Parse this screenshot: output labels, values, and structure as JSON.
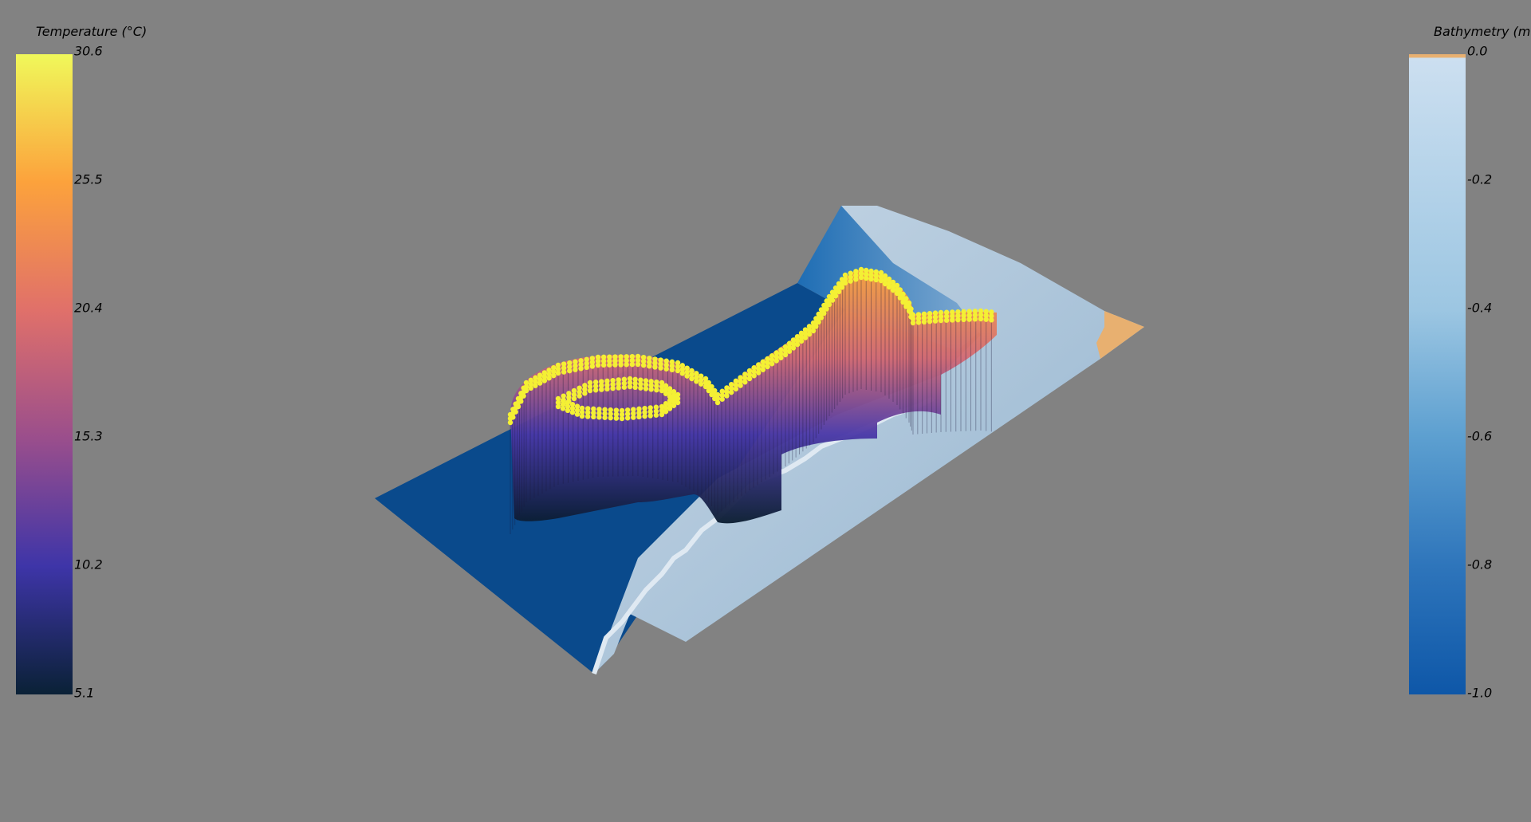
{
  "temperature_bar": {
    "title": "Temperature (°C)",
    "ticks": [
      "30.6",
      "25.5",
      "20.4",
      "15.3",
      "10.2",
      "5.1"
    ],
    "colors": [
      "#f0f85a",
      "#fca23c",
      "#e0706a",
      "#9a4e8c",
      "#3e35a8",
      "#0a2136"
    ]
  },
  "bathymetry_bar": {
    "title": "Bathymetry (m",
    "ticks": [
      "0.0",
      "-0.2",
      "-0.4",
      "-0.6",
      "-0.8",
      "-1.0"
    ],
    "colors": [
      "#e8b070",
      "#ccdff0",
      "#9cc6e2",
      "#5c9fd0",
      "#2e75bb",
      "#0e57a8"
    ]
  },
  "scene": {
    "background": "#828282",
    "shallow_color": "#0a4a8c",
    "shelf_color": "#a8c2d8",
    "sand_color": "#e8b070",
    "point_color": "#f4f034"
  }
}
